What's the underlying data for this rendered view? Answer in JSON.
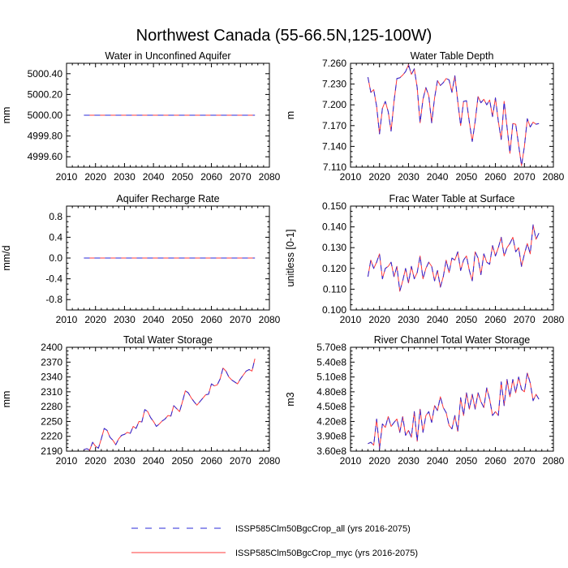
{
  "figure": {
    "title": "Northwest Canada (55-66.5N,125-100W)"
  },
  "legend": {
    "entries": [
      {
        "label": "ISSP585Clm50BgcCrop_all (yrs 2016-2075)",
        "color": "#2a2ad8",
        "style": "dashed"
      },
      {
        "label": "ISSP585Clm50BgcCrop_myc (yrs 2016-2075)",
        "color": "#ff3b3b",
        "style": "solid"
      }
    ]
  },
  "chart_data": [
    {
      "type": "line",
      "title": "Water in Unconfined Aquifer",
      "xlabel": "",
      "ylabel": "mm",
      "xlim": [
        2010,
        2080
      ],
      "ylim": [
        4999.5,
        5000.5
      ],
      "xticks": [
        2010,
        2020,
        2030,
        2040,
        2050,
        2060,
        2070,
        2080
      ],
      "yticks": [
        4999.6,
        4999.8,
        5000.0,
        5000.2,
        5000.4
      ],
      "ytick_labels": [
        "4999.60",
        "4999.80",
        "5000.00",
        "5000.20",
        "5000.40"
      ],
      "x_start": 2016,
      "series": [
        {
          "name": "ISSP585Clm50BgcCrop_all (yrs 2016-2075)",
          "values": [
            5000,
            5000,
            5000,
            5000,
            5000,
            5000,
            5000,
            5000,
            5000,
            5000,
            5000,
            5000,
            5000,
            5000,
            5000,
            5000,
            5000,
            5000,
            5000,
            5000,
            5000,
            5000,
            5000,
            5000,
            5000,
            5000,
            5000,
            5000,
            5000,
            5000,
            5000,
            5000,
            5000,
            5000,
            5000,
            5000,
            5000,
            5000,
            5000,
            5000,
            5000,
            5000,
            5000,
            5000,
            5000,
            5000,
            5000,
            5000,
            5000,
            5000,
            5000,
            5000,
            5000,
            5000,
            5000,
            5000,
            5000,
            5000,
            5000,
            5000
          ]
        },
        {
          "name": "ISSP585Clm50BgcCrop_myc (yrs 2016-2075)",
          "values": [
            5000,
            5000,
            5000,
            5000,
            5000,
            5000,
            5000,
            5000,
            5000,
            5000,
            5000,
            5000,
            5000,
            5000,
            5000,
            5000,
            5000,
            5000,
            5000,
            5000,
            5000,
            5000,
            5000,
            5000,
            5000,
            5000,
            5000,
            5000,
            5000,
            5000,
            5000,
            5000,
            5000,
            5000,
            5000,
            5000,
            5000,
            5000,
            5000,
            5000,
            5000,
            5000,
            5000,
            5000,
            5000,
            5000,
            5000,
            5000,
            5000,
            5000,
            5000,
            5000,
            5000,
            5000,
            5000,
            5000,
            5000,
            5000,
            5000,
            5000
          ]
        }
      ]
    },
    {
      "type": "line",
      "title": "Water Table Depth",
      "xlabel": "",
      "ylabel": "m",
      "xlim": [
        2010,
        2080
      ],
      "ylim": [
        7.11,
        7.26
      ],
      "xticks": [
        2010,
        2020,
        2030,
        2040,
        2050,
        2060,
        2070,
        2080
      ],
      "yticks": [
        7.11,
        7.14,
        7.17,
        7.2,
        7.23,
        7.26
      ],
      "ytick_labels": [
        "7.110",
        "7.140",
        "7.170",
        "7.200",
        "7.230",
        "7.260"
      ],
      "x_start": 2016,
      "series": [
        {
          "name": "ISSP585Clm50BgcCrop_all (yrs 2016-2075)",
          "values": [
            7.24,
            7.218,
            7.222,
            7.198,
            7.158,
            7.195,
            7.205,
            7.19,
            7.162,
            7.205,
            7.238,
            7.239,
            7.243,
            7.248,
            7.258,
            7.244,
            7.252,
            7.225,
            7.174,
            7.208,
            7.225,
            7.213,
            7.174,
            7.21,
            7.235,
            7.228,
            7.232,
            7.238,
            7.236,
            7.218,
            7.242,
            7.205,
            7.17,
            7.205,
            7.206,
            7.175,
            7.147,
            7.176,
            7.212,
            7.203,
            7.208,
            7.2,
            7.207,
            7.183,
            7.21,
            7.176,
            7.15,
            7.205,
            7.168,
            7.13,
            7.173,
            7.172,
            7.142,
            7.112,
            7.14,
            7.18,
            7.168,
            7.175,
            7.172,
            7.173
          ]
        },
        {
          "name": "ISSP585Clm50BgcCrop_myc (yrs 2016-2075)",
          "values": [
            7.24,
            7.218,
            7.222,
            7.198,
            7.158,
            7.195,
            7.205,
            7.19,
            7.162,
            7.205,
            7.238,
            7.239,
            7.243,
            7.248,
            7.258,
            7.244,
            7.252,
            7.225,
            7.174,
            7.208,
            7.225,
            7.213,
            7.174,
            7.21,
            7.235,
            7.228,
            7.232,
            7.238,
            7.236,
            7.218,
            7.242,
            7.205,
            7.17,
            7.205,
            7.206,
            7.175,
            7.147,
            7.176,
            7.212,
            7.203,
            7.208,
            7.2,
            7.207,
            7.183,
            7.21,
            7.176,
            7.15,
            7.205,
            7.168,
            7.13,
            7.173,
            7.172,
            7.142,
            7.112,
            7.14,
            7.18,
            7.168,
            7.175,
            7.172,
            7.173
          ]
        }
      ]
    },
    {
      "type": "line",
      "title": "Aquifer Recharge Rate",
      "xlabel": "",
      "ylabel": "mm/d",
      "xlim": [
        2010,
        2080
      ],
      "ylim": [
        -1.0,
        1.0
      ],
      "xticks": [
        2010,
        2020,
        2030,
        2040,
        2050,
        2060,
        2070,
        2080
      ],
      "yticks": [
        -0.8,
        -0.4,
        0.0,
        0.4,
        0.8
      ],
      "ytick_labels": [
        "-0.8",
        "-0.4",
        "0.0",
        "0.4",
        "0.8"
      ],
      "x_start": 2016,
      "series": [
        {
          "name": "ISSP585Clm50BgcCrop_all (yrs 2016-2075)",
          "values": [
            0,
            0,
            0,
            0,
            0,
            0,
            0,
            0,
            0,
            0,
            0,
            0,
            0,
            0,
            0,
            0,
            0,
            0,
            0,
            0,
            0,
            0,
            0,
            0,
            0,
            0,
            0,
            0,
            0,
            0,
            0,
            0,
            0,
            0,
            0,
            0,
            0,
            0,
            0,
            0,
            0,
            0,
            0,
            0,
            0,
            0,
            0,
            0,
            0,
            0,
            0,
            0,
            0,
            0,
            0,
            0,
            0,
            0,
            0,
            0
          ]
        },
        {
          "name": "ISSP585Clm50BgcCrop_myc (yrs 2016-2075)",
          "values": [
            0,
            0,
            0,
            0,
            0,
            0,
            0,
            0,
            0,
            0,
            0,
            0,
            0,
            0,
            0,
            0,
            0,
            0,
            0,
            0,
            0,
            0,
            0,
            0,
            0,
            0,
            0,
            0,
            0,
            0,
            0,
            0,
            0,
            0,
            0,
            0,
            0,
            0,
            0,
            0,
            0,
            0,
            0,
            0,
            0,
            0,
            0,
            0,
            0,
            0,
            0,
            0,
            0,
            0,
            0,
            0,
            0,
            0,
            0,
            0
          ]
        }
      ]
    },
    {
      "type": "line",
      "title": "Frac Water Table at Surface",
      "xlabel": "",
      "ylabel": "unitless [0-1]",
      "xlim": [
        2010,
        2080
      ],
      "ylim": [
        0.1,
        0.15
      ],
      "xticks": [
        2010,
        2020,
        2030,
        2040,
        2050,
        2060,
        2070,
        2080
      ],
      "yticks": [
        0.1,
        0.11,
        0.12,
        0.13,
        0.14,
        0.15
      ],
      "ytick_labels": [
        "0.100",
        "0.110",
        "0.120",
        "0.130",
        "0.140",
        "0.150"
      ],
      "x_start": 2016,
      "series": [
        {
          "name": "ISSP585Clm50BgcCrop_all (yrs 2016-2075)",
          "values": [
            0.116,
            0.124,
            0.12,
            0.123,
            0.127,
            0.115,
            0.12,
            0.121,
            0.123,
            0.116,
            0.121,
            0.109,
            0.114,
            0.12,
            0.113,
            0.121,
            0.115,
            0.118,
            0.126,
            0.115,
            0.12,
            0.123,
            0.121,
            0.114,
            0.119,
            0.111,
            0.116,
            0.124,
            0.118,
            0.125,
            0.124,
            0.128,
            0.119,
            0.124,
            0.126,
            0.119,
            0.114,
            0.128,
            0.125,
            0.117,
            0.127,
            0.123,
            0.122,
            0.131,
            0.126,
            0.13,
            0.135,
            0.126,
            0.13,
            0.132,
            0.135,
            0.128,
            0.13,
            0.121,
            0.127,
            0.132,
            0.127,
            0.141,
            0.134,
            0.137
          ]
        },
        {
          "name": "ISSP585Clm50BgcCrop_myc (yrs 2016-2075)",
          "values": [
            0.116,
            0.124,
            0.12,
            0.123,
            0.127,
            0.115,
            0.12,
            0.121,
            0.123,
            0.116,
            0.121,
            0.109,
            0.114,
            0.12,
            0.113,
            0.121,
            0.115,
            0.118,
            0.126,
            0.115,
            0.12,
            0.123,
            0.121,
            0.114,
            0.119,
            0.111,
            0.116,
            0.124,
            0.118,
            0.125,
            0.124,
            0.128,
            0.119,
            0.124,
            0.126,
            0.119,
            0.114,
            0.128,
            0.125,
            0.117,
            0.127,
            0.123,
            0.122,
            0.131,
            0.126,
            0.13,
            0.135,
            0.126,
            0.13,
            0.132,
            0.135,
            0.128,
            0.13,
            0.121,
            0.127,
            0.132,
            0.127,
            0.141,
            0.134,
            0.137
          ]
        }
      ]
    },
    {
      "type": "line",
      "title": "Total Water Storage",
      "xlabel": "",
      "ylabel": "mm",
      "xlim": [
        2010,
        2080
      ],
      "ylim": [
        2190,
        2400
      ],
      "xticks": [
        2010,
        2020,
        2030,
        2040,
        2050,
        2060,
        2070,
        2080
      ],
      "yticks": [
        2190,
        2220,
        2250,
        2280,
        2310,
        2340,
        2370,
        2400
      ],
      "ytick_labels": [
        "2190",
        "2220",
        "2250",
        "2280",
        "2310",
        "2340",
        "2370",
        "2400"
      ],
      "x_start": 2016,
      "series": [
        {
          "name": "ISSP585Clm50BgcCrop_all (yrs 2016-2075)",
          "values": [
            2193,
            2195,
            2192,
            2208,
            2200,
            2196,
            2215,
            2236,
            2232,
            2218,
            2212,
            2203,
            2215,
            2222,
            2224,
            2228,
            2226,
            2240,
            2236,
            2250,
            2249,
            2274,
            2270,
            2258,
            2250,
            2240,
            2245,
            2251,
            2255,
            2262,
            2261,
            2282,
            2276,
            2270,
            2290,
            2312,
            2308,
            2298,
            2290,
            2283,
            2290,
            2297,
            2304,
            2305,
            2326,
            2322,
            2324,
            2336,
            2358,
            2352,
            2340,
            2334,
            2330,
            2326,
            2336,
            2344,
            2352,
            2355,
            2352,
            2377
          ]
        },
        {
          "name": "ISSP585Clm50BgcCrop_myc (yrs 2016-2075)",
          "values": [
            2193,
            2195,
            2192,
            2208,
            2200,
            2196,
            2215,
            2236,
            2232,
            2218,
            2212,
            2203,
            2215,
            2222,
            2224,
            2228,
            2226,
            2240,
            2236,
            2250,
            2249,
            2274,
            2270,
            2258,
            2250,
            2240,
            2245,
            2251,
            2255,
            2262,
            2261,
            2282,
            2276,
            2270,
            2290,
            2312,
            2308,
            2298,
            2290,
            2283,
            2290,
            2297,
            2304,
            2305,
            2326,
            2322,
            2324,
            2336,
            2358,
            2352,
            2340,
            2334,
            2330,
            2326,
            2336,
            2344,
            2352,
            2355,
            2352,
            2377
          ]
        }
      ]
    },
    {
      "type": "line",
      "title": "River Channel Total Water Storage",
      "xlabel": "",
      "ylabel": "m3",
      "xlim": [
        2010,
        2080
      ],
      "ylim": [
        360000000,
        570000000
      ],
      "xticks": [
        2010,
        2020,
        2030,
        2040,
        2050,
        2060,
        2070,
        2080
      ],
      "yticks": [
        360000000,
        390000000,
        420000000,
        450000000,
        480000000,
        510000000,
        540000000,
        570000000
      ],
      "ytick_labels": [
        "3.60e8",
        "3.90e8",
        "4.20e8",
        "4.50e8",
        "4.80e8",
        "5.10e8",
        "5.40e8",
        "5.70e8"
      ],
      "x_start": 2016,
      "series": [
        {
          "name": "ISSP585Clm50BgcCrop_all (yrs 2016-2075)",
          "values": [
            375000000,
            378000000,
            372000000,
            425000000,
            365000000,
            415000000,
            408000000,
            430000000,
            410000000,
            418000000,
            425000000,
            398000000,
            430000000,
            392000000,
            402000000,
            388000000,
            440000000,
            380000000,
            445000000,
            398000000,
            432000000,
            440000000,
            418000000,
            452000000,
            442000000,
            470000000,
            448000000,
            438000000,
            412000000,
            405000000,
            432000000,
            400000000,
            468000000,
            432000000,
            478000000,
            445000000,
            475000000,
            445000000,
            478000000,
            460000000,
            448000000,
            488000000,
            465000000,
            432000000,
            440000000,
            432000000,
            500000000,
            452000000,
            505000000,
            470000000,
            505000000,
            478000000,
            510000000,
            485000000,
            480000000,
            518000000,
            498000000,
            462000000,
            475000000,
            465000000
          ]
        },
        {
          "name": "ISSP585Clm50BgcCrop_myc (yrs 2016-2075)",
          "values": [
            375000000,
            378000000,
            372000000,
            425000000,
            365000000,
            415000000,
            408000000,
            430000000,
            410000000,
            418000000,
            425000000,
            398000000,
            430000000,
            392000000,
            402000000,
            388000000,
            440000000,
            380000000,
            445000000,
            398000000,
            432000000,
            440000000,
            418000000,
            452000000,
            442000000,
            470000000,
            448000000,
            438000000,
            412000000,
            405000000,
            432000000,
            400000000,
            468000000,
            432000000,
            478000000,
            445000000,
            475000000,
            445000000,
            478000000,
            460000000,
            448000000,
            488000000,
            465000000,
            432000000,
            440000000,
            432000000,
            500000000,
            452000000,
            505000000,
            470000000,
            505000000,
            478000000,
            510000000,
            485000000,
            480000000,
            518000000,
            498000000,
            462000000,
            475000000,
            465000000
          ]
        }
      ]
    }
  ]
}
